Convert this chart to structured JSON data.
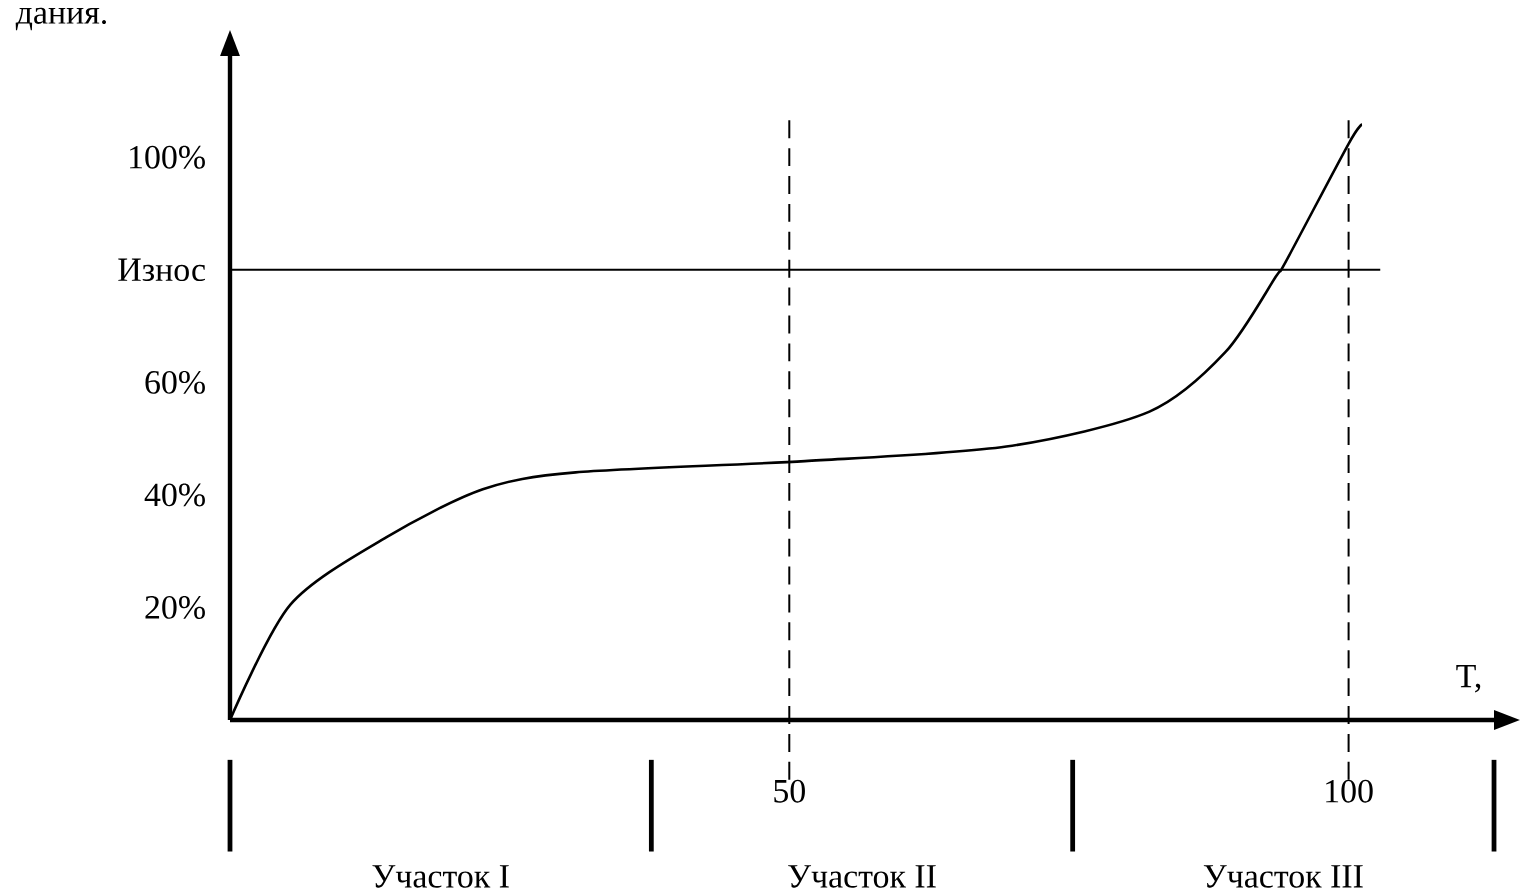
{
  "chart_data": {
    "type": "line",
    "title": "дания.",
    "xlabel": "T,",
    "x": [
      0,
      5.4,
      14,
      22.6,
      30.9,
      51.4,
      69.4,
      82.2,
      89,
      93.5,
      94.4,
      100,
      101.2
    ],
    "series": [
      {
        "color": "#000000",
        "values": [
          0,
          20.5,
          32.5,
          41,
          44,
          46,
          48.6,
          54.8,
          65.4,
          78.8,
          81.5,
          102.4,
          105.8
        ]
      }
    ],
    "xlim": [
      0,
      113
    ],
    "ylim": [
      0,
      118
    ],
    "xticks": [
      50,
      100
    ],
    "yticks": [
      {
        "value": 20,
        "label": "20%"
      },
      {
        "value": 40,
        "label": "40%"
      },
      {
        "value": 60,
        "label": "60%"
      },
      {
        "value": 80,
        "label": "Износ"
      },
      {
        "value": 100,
        "label": "100%"
      }
    ],
    "ref_lines": [
      {
        "axis": "x",
        "value": 50,
        "line_style": "dashed",
        "color": "#000000"
      },
      {
        "axis": "x",
        "value": 100,
        "line_style": "dashed",
        "color": "#000000"
      },
      {
        "axis": "y",
        "value": 80,
        "line_style": "solid",
        "color": "#000000"
      }
    ],
    "annotations": [
      "Участок I",
      "Участок II",
      "Участок III"
    ],
    "grid": false,
    "marker": "none",
    "line_style": "solid"
  }
}
